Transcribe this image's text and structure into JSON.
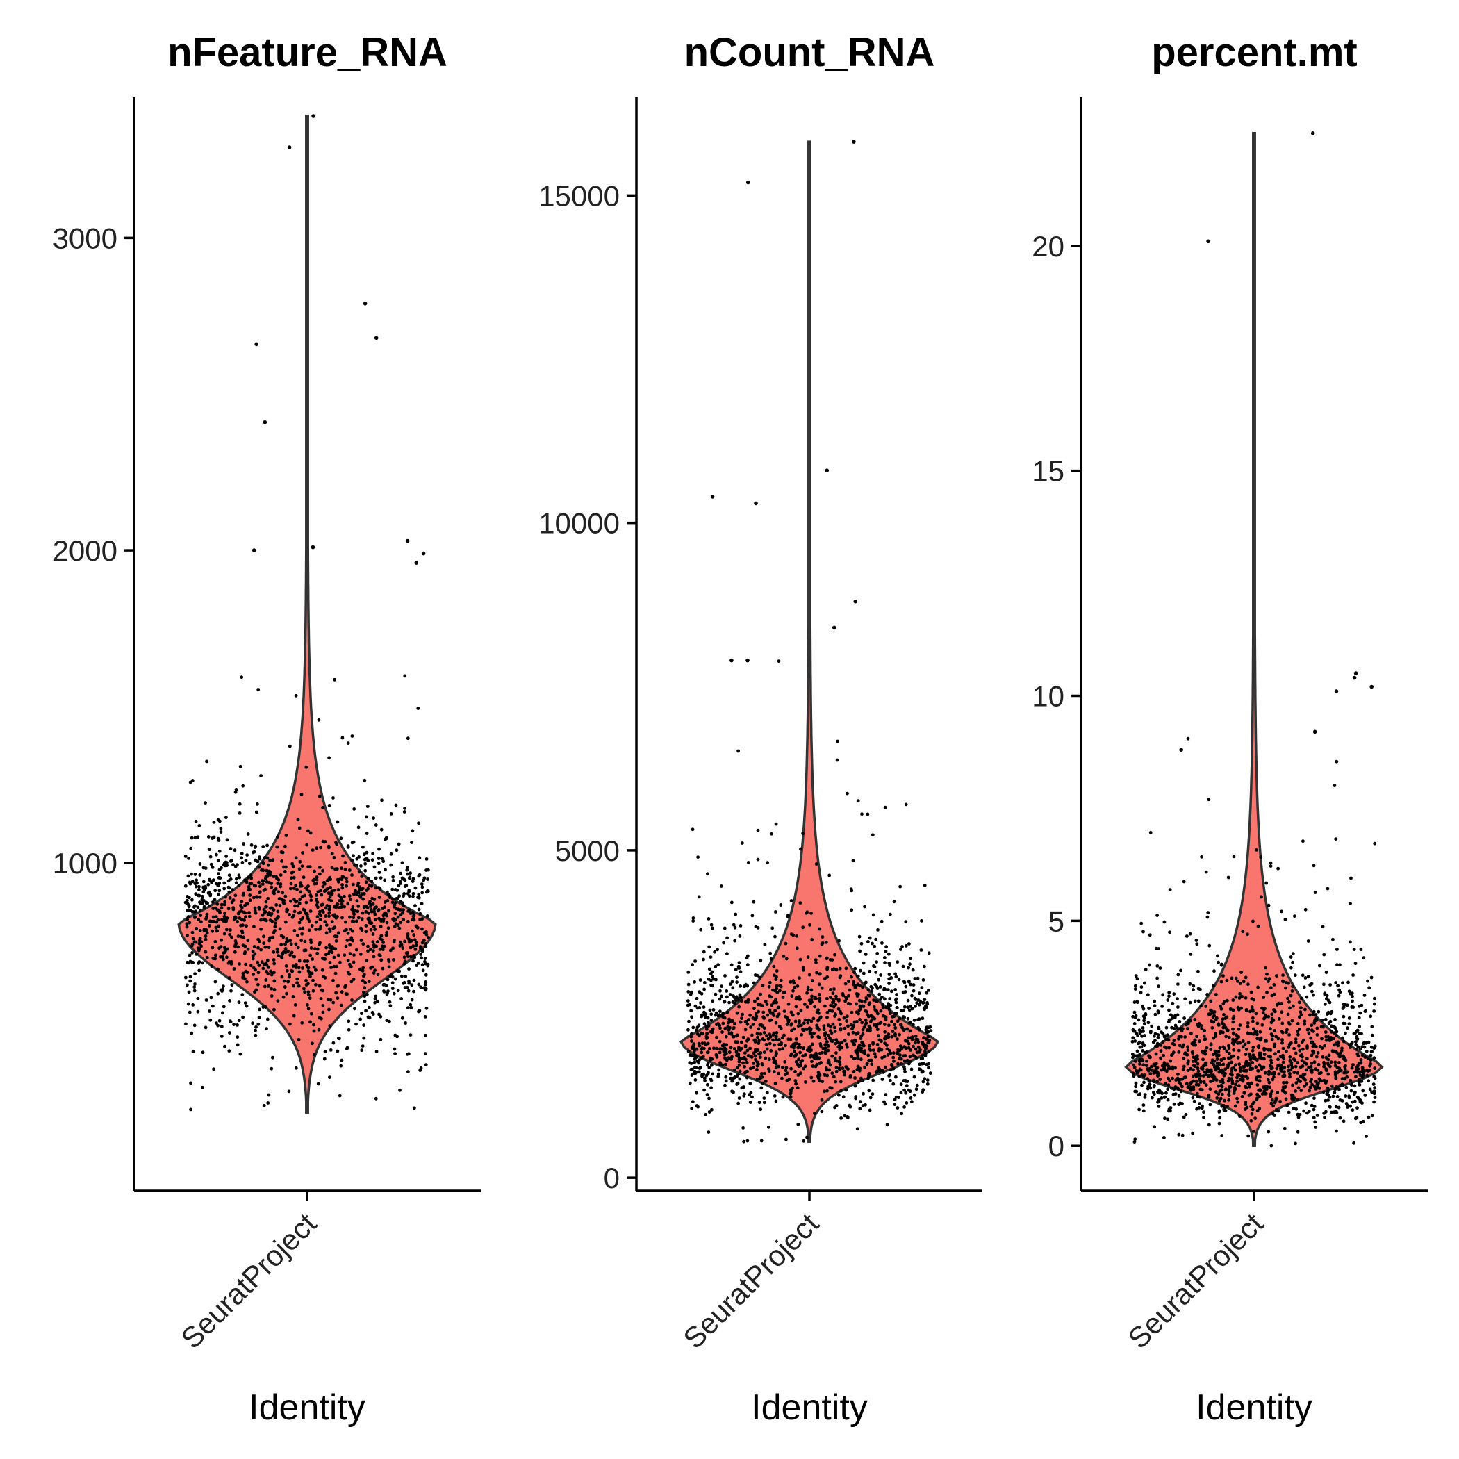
{
  "chart_data": [
    {
      "type": "violin",
      "title": "nFeature_RNA",
      "xlabel": "Identity",
      "ylabel": "",
      "categories": [
        "SeuratProject"
      ],
      "yticks": [
        1000,
        2000,
        3000
      ],
      "ylim": [
        -50,
        3450
      ],
      "distribution": {
        "min": 200,
        "max": 3390,
        "mode": 810,
        "median": 820,
        "n_cells": 2700
      },
      "outliers": [
        3390,
        3290,
        2790,
        2680,
        2660,
        2410,
        2030,
        2010,
        2000,
        1990,
        1960
      ]
    },
    {
      "type": "violin",
      "title": "nCount_RNA",
      "xlabel": "Identity",
      "ylabel": "",
      "categories": [
        "SeuratProject"
      ],
      "yticks": [
        0,
        5000,
        10000,
        15000
      ],
      "ylim": [
        -200,
        16500
      ],
      "distribution": {
        "min": 550,
        "max": 15820,
        "mode": 2100,
        "median": 2200,
        "n_cells": 2700
      },
      "outliers": [
        15820,
        15200,
        10800,
        10400,
        10300,
        8800,
        8400,
        7900,
        7900
      ]
    },
    {
      "type": "violin",
      "title": "percent.mt",
      "xlabel": "Identity",
      "ylabel": "",
      "categories": [
        "SeuratProject"
      ],
      "yticks": [
        0,
        5,
        10,
        15,
        20
      ],
      "ylim": [
        -1,
        23.3
      ],
      "distribution": {
        "min": 0,
        "max": 22.5,
        "mode": 1.8,
        "median": 2.0,
        "n_cells": 2700
      },
      "outliers": [
        22.5,
        20.1,
        10.5,
        10.4,
        10.2,
        10.1,
        9.2,
        8.8
      ]
    }
  ]
}
